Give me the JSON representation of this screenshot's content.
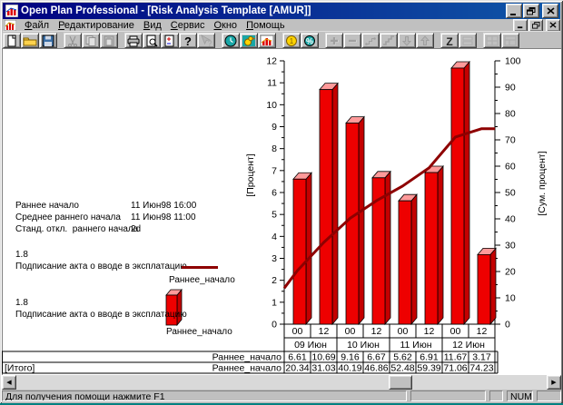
{
  "window": {
    "title": "Open Plan Professional - [Risk Analysis Template [AMUR]]"
  },
  "menu": {
    "items": [
      "Файл",
      "Редактирование",
      "Вид",
      "Сервис",
      "Окно",
      "Помощь"
    ]
  },
  "toolbar": {
    "groups": [
      [
        {
          "name": "new",
          "icon": "new-document",
          "enabled": true
        },
        {
          "name": "open",
          "icon": "open-folder",
          "enabled": true
        },
        {
          "name": "save",
          "icon": "save-floppy",
          "enabled": true
        }
      ],
      [
        {
          "name": "cut",
          "icon": "cut-scissors",
          "enabled": false
        },
        {
          "name": "copy",
          "icon": "copy-pages",
          "enabled": false
        },
        {
          "name": "paste",
          "icon": "paste-clipboard",
          "enabled": false
        }
      ],
      [
        {
          "name": "print",
          "icon": "printer",
          "enabled": true
        },
        {
          "name": "print-preview",
          "icon": "print-preview",
          "enabled": true
        },
        {
          "name": "page-adjust",
          "icon": "page-plusminus",
          "enabled": true
        },
        {
          "name": "help",
          "icon": "help-question",
          "enabled": true
        },
        {
          "name": "context-help",
          "icon": "context-help",
          "enabled": false
        }
      ],
      [
        {
          "name": "time-analysis",
          "icon": "clock",
          "enabled": true
        },
        {
          "name": "risk-analysis",
          "icon": "risk-duck",
          "enabled": true
        },
        {
          "name": "histogram-view",
          "icon": "histogram",
          "enabled": true
        }
      ],
      [
        {
          "name": "cost",
          "icon": "coin",
          "enabled": true
        },
        {
          "name": "percent",
          "icon": "percent",
          "enabled": true
        }
      ],
      [
        {
          "name": "add",
          "icon": "plus",
          "enabled": false
        },
        {
          "name": "remove",
          "icon": "minus",
          "enabled": false
        },
        {
          "name": "link",
          "icon": "link-dots",
          "enabled": false
        },
        {
          "name": "steps",
          "icon": "step-chart",
          "enabled": false
        },
        {
          "name": "move-down",
          "icon": "arrow-down",
          "enabled": false
        },
        {
          "name": "move-up",
          "icon": "arrow-up",
          "enabled": false
        }
      ],
      [
        {
          "name": "sort",
          "icon": "sort-z",
          "enabled": true
        },
        {
          "name": "layout",
          "icon": "layers",
          "enabled": false
        }
      ],
      [
        {
          "name": "split-window",
          "icon": "window-split",
          "enabled": false
        },
        {
          "name": "new-window",
          "icon": "window-split2",
          "enabled": false
        }
      ]
    ]
  },
  "stats": {
    "rows": [
      {
        "label": "Раннее начало",
        "value": "11 Июн98 16:00"
      },
      {
        "label": "Среднее раннего начала",
        "value": "11 Июн98 11:00"
      },
      {
        "label": "Станд. откл.  раннего начала",
        "value": "2d"
      }
    ]
  },
  "legends": [
    {
      "value": "1.8",
      "activity": "Подписание акта о вводе в эксплатацию",
      "swatch": "line",
      "series": "Раннее_начало"
    },
    {
      "value": "1.8",
      "activity": "Подписание акта о вводе в эксплатацию",
      "swatch": "bar",
      "series": "Раннее_начало"
    }
  ],
  "chart_data": {
    "type": "bar",
    "hours": [
      "00",
      "12",
      "00",
      "12",
      "00",
      "12",
      "00",
      "12"
    ],
    "dates": [
      "09 Июн",
      "10 Июн",
      "11 Июн",
      "12 Июн"
    ],
    "ylabel_left": "[Процент]",
    "ylabel_right": "[Сум. процент]",
    "ylim_left": [
      0,
      12
    ],
    "ylim_right": [
      0,
      100
    ],
    "grid": false,
    "series": [
      {
        "name": "Раннее_начало",
        "type": "bar",
        "axis": "left",
        "values": [
          6.61,
          10.69,
          9.16,
          6.67,
          5.62,
          6.91,
          11.67,
          3.17
        ]
      },
      {
        "name": "Раннее_начало [Итого]",
        "type": "line",
        "axis": "right",
        "values": [
          20.34,
          31.03,
          40.19,
          46.86,
          52.48,
          59.39,
          71.06,
          74.23
        ],
        "left_edge_value": 13.7
      }
    ]
  },
  "table": {
    "rows": [
      {
        "group": "",
        "series": "Раннее_начало",
        "values": [
          "6.61",
          "10.69",
          "9.16",
          "6.67",
          "5.62",
          "6.91",
          "11.67",
          "3.17"
        ]
      },
      {
        "group": "[Итого]",
        "series": "Раннее_начало",
        "values": [
          "20.34",
          "31.03",
          "40.19",
          "46.86",
          "52.48",
          "59.39",
          "71.06",
          "74.23"
        ]
      }
    ]
  },
  "statusbar": {
    "message": "Для получения помощи нажмите F1",
    "num": "NUM"
  },
  "colors": {
    "titlebar": "#000080",
    "bar_front": "#ee0000",
    "bar_top": "#ff9a9a",
    "bar_side": "#c40000",
    "line": "#8e0000",
    "desktop": "#008080"
  }
}
